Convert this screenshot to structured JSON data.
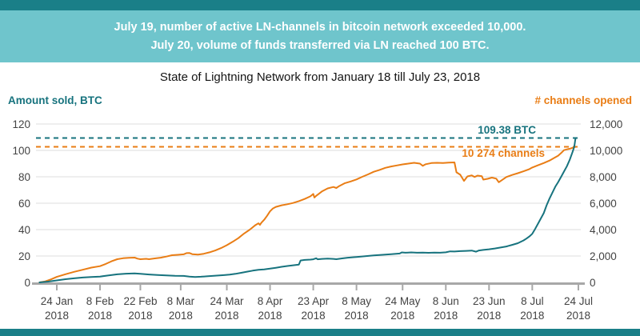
{
  "top_bar": {
    "color": "#1a7f88"
  },
  "banner": {
    "bg": "#6fc5cc",
    "text_color": "#ffffff",
    "line1": "July 19, number of active LN-channels in bitcoin network exceeded 10,000.",
    "line2": "July 20, volume of funds transferred via LN reached 100 BTC."
  },
  "title": "State of Lightning Network from January 18 till July 23, 2018",
  "bottom_bar": {
    "color": "#1a7f88"
  },
  "chart_data": {
    "type": "line",
    "title": "State of Lightning Network from January 18 till July 23, 2018",
    "grid": true,
    "legend_position": "axis-headers",
    "left_axis": {
      "label": "Amount sold, BTC",
      "color": "#17737e",
      "range": [
        0,
        120
      ],
      "ticks": [
        0,
        20,
        40,
        60,
        80,
        100,
        120
      ]
    },
    "right_axis": {
      "label": "# channels opened",
      "color": "#e97d15",
      "range": [
        0,
        12000
      ],
      "tick_labels": [
        "0",
        "2,000",
        "4,000",
        "6,000",
        "8,000",
        "10,000",
        "12,000"
      ],
      "ticks": [
        0,
        2000,
        4000,
        6000,
        8000,
        10000,
        12000
      ]
    },
    "x_axis": {
      "start_date": "2018-01-18",
      "end_date": "2018-07-23",
      "tick_year_line": "2018"
    },
    "x_ticks": [
      {
        "day": 6,
        "label": "24 Jan"
      },
      {
        "day": 21,
        "label": "8 Feb"
      },
      {
        "day": 35,
        "label": "22 Feb"
      },
      {
        "day": 49,
        "label": "8 Mar"
      },
      {
        "day": 65,
        "label": "24 Mar"
      },
      {
        "day": 80,
        "label": "8 Apr"
      },
      {
        "day": 95,
        "label": "23 Apr"
      },
      {
        "day": 110,
        "label": "8 May"
      },
      {
        "day": 126,
        "label": "24 May"
      },
      {
        "day": 141,
        "label": "8 Jun"
      },
      {
        "day": 156,
        "label": "23 Jun"
      },
      {
        "day": 171,
        "label": "8 Jul"
      },
      {
        "day": 187,
        "label": "24 Jul"
      }
    ],
    "annotations": [
      {
        "text": "109.38 BTC",
        "axis": "left",
        "value": 109.38,
        "color": "#17737e",
        "style": "dashed-line-with-label"
      },
      {
        "text": "10 274 channels",
        "axis": "right",
        "value": 10274,
        "color": "#e97d15",
        "style": "dashed-line-with-label"
      }
    ],
    "series": [
      {
        "name": "# channels opened",
        "axis": "right",
        "color": "#e97d15",
        "points": [
          [
            0,
            0
          ],
          [
            2,
            80
          ],
          [
            4,
            230
          ],
          [
            6,
            420
          ],
          [
            9,
            620
          ],
          [
            12,
            800
          ],
          [
            15,
            960
          ],
          [
            18,
            1120
          ],
          [
            21,
            1230
          ],
          [
            23,
            1400
          ],
          [
            25,
            1600
          ],
          [
            27,
            1760
          ],
          [
            29,
            1830
          ],
          [
            31,
            1860
          ],
          [
            33,
            1880
          ],
          [
            34,
            1800
          ],
          [
            35,
            1760
          ],
          [
            37,
            1790
          ],
          [
            38,
            1760
          ],
          [
            40,
            1820
          ],
          [
            42,
            1870
          ],
          [
            44,
            1960
          ],
          [
            46,
            2060
          ],
          [
            48,
            2090
          ],
          [
            50,
            2130
          ],
          [
            51,
            2220
          ],
          [
            52,
            2230
          ],
          [
            53,
            2140
          ],
          [
            55,
            2110
          ],
          [
            57,
            2170
          ],
          [
            59,
            2280
          ],
          [
            61,
            2420
          ],
          [
            63,
            2600
          ],
          [
            65,
            2820
          ],
          [
            67,
            3070
          ],
          [
            69,
            3350
          ],
          [
            71,
            3700
          ],
          [
            73,
            4000
          ],
          [
            75,
            4350
          ],
          [
            76,
            4480
          ],
          [
            76.5,
            4360
          ],
          [
            77,
            4520
          ],
          [
            78,
            4750
          ],
          [
            79,
            5050
          ],
          [
            80,
            5380
          ],
          [
            81,
            5600
          ],
          [
            82,
            5720
          ],
          [
            84,
            5840
          ],
          [
            86,
            5920
          ],
          [
            88,
            6020
          ],
          [
            90,
            6160
          ],
          [
            92,
            6320
          ],
          [
            94,
            6520
          ],
          [
            95,
            6700
          ],
          [
            95.4,
            6430
          ],
          [
            96,
            6560
          ],
          [
            98,
            6890
          ],
          [
            100,
            7120
          ],
          [
            102,
            7230
          ],
          [
            103,
            7150
          ],
          [
            104,
            7300
          ],
          [
            106,
            7520
          ],
          [
            108,
            7650
          ],
          [
            110,
            7800
          ],
          [
            112,
            8000
          ],
          [
            114,
            8180
          ],
          [
            116,
            8380
          ],
          [
            118,
            8520
          ],
          [
            120,
            8680
          ],
          [
            122,
            8780
          ],
          [
            124,
            8860
          ],
          [
            126,
            8940
          ],
          [
            128,
            9000
          ],
          [
            130,
            9060
          ],
          [
            132,
            9000
          ],
          [
            133,
            8830
          ],
          [
            134,
            8950
          ],
          [
            136,
            9040
          ],
          [
            138,
            9060
          ],
          [
            140,
            9050
          ],
          [
            142,
            9070
          ],
          [
            144,
            9090
          ],
          [
            144.7,
            8340
          ],
          [
            146,
            8160
          ],
          [
            147.3,
            7690
          ],
          [
            148.5,
            8030
          ],
          [
            150,
            8110
          ],
          [
            151,
            7990
          ],
          [
            152,
            8090
          ],
          [
            153.5,
            8050
          ],
          [
            154,
            7790
          ],
          [
            155.5,
            7850
          ],
          [
            157,
            7940
          ],
          [
            158.5,
            7860
          ],
          [
            159.4,
            7590
          ],
          [
            160.5,
            7750
          ],
          [
            162,
            7980
          ],
          [
            164,
            8140
          ],
          [
            166,
            8270
          ],
          [
            168,
            8420
          ],
          [
            170,
            8580
          ],
          [
            171,
            8700
          ],
          [
            173,
            8870
          ],
          [
            175,
            9040
          ],
          [
            177,
            9230
          ],
          [
            179,
            9480
          ],
          [
            180,
            9600
          ],
          [
            181,
            9800
          ],
          [
            182,
            10020
          ],
          [
            183,
            10080
          ],
          [
            184,
            10130
          ],
          [
            185,
            10200
          ],
          [
            186,
            10274
          ]
        ]
      },
      {
        "name": "Amount sold, BTC",
        "axis": "left",
        "color": "#17737e",
        "points": [
          [
            0,
            0
          ],
          [
            3,
            0.6
          ],
          [
            6,
            1.5
          ],
          [
            9,
            2.4
          ],
          [
            12,
            3.1
          ],
          [
            15,
            3.7
          ],
          [
            18,
            4.1
          ],
          [
            21,
            4.4
          ],
          [
            24,
            5.3
          ],
          [
            27,
            6.1
          ],
          [
            30,
            6.6
          ],
          [
            33,
            6.8
          ],
          [
            35,
            6.5
          ],
          [
            38,
            6.0
          ],
          [
            41,
            5.6
          ],
          [
            44,
            5.3
          ],
          [
            47,
            5.0
          ],
          [
            50,
            4.9
          ],
          [
            52,
            4.4
          ],
          [
            54,
            4.1
          ],
          [
            56,
            4.3
          ],
          [
            58,
            4.6
          ],
          [
            60,
            4.9
          ],
          [
            62,
            5.2
          ],
          [
            64,
            5.5
          ],
          [
            66,
            5.9
          ],
          [
            68,
            6.5
          ],
          [
            70,
            7.3
          ],
          [
            72,
            8.1
          ],
          [
            74,
            8.9
          ],
          [
            76,
            9.5
          ],
          [
            78,
            9.9
          ],
          [
            80,
            10.4
          ],
          [
            82,
            11.1
          ],
          [
            84,
            11.8
          ],
          [
            86,
            12.4
          ],
          [
            88,
            13.0
          ],
          [
            90,
            13.5
          ],
          [
            90.6,
            16.6
          ],
          [
            92,
            17.0
          ],
          [
            94,
            17.3
          ],
          [
            95,
            17.5
          ],
          [
            96,
            18.3
          ],
          [
            96.5,
            17.5
          ],
          [
            98,
            17.8
          ],
          [
            100,
            18.0
          ],
          [
            102,
            17.8
          ],
          [
            103,
            17.6
          ],
          [
            105,
            18.2
          ],
          [
            107,
            18.7
          ],
          [
            109,
            19.1
          ],
          [
            110,
            19.3
          ],
          [
            113,
            19.9
          ],
          [
            116,
            20.4
          ],
          [
            119,
            20.9
          ],
          [
            122,
            21.4
          ],
          [
            125,
            21.9
          ],
          [
            125.7,
            22.7
          ],
          [
            127,
            22.5
          ],
          [
            129,
            22.7
          ],
          [
            131,
            22.5
          ],
          [
            133,
            22.6
          ],
          [
            135,
            22.4
          ],
          [
            137,
            22.6
          ],
          [
            139,
            22.5
          ],
          [
            141,
            22.8
          ],
          [
            142.5,
            23.5
          ],
          [
            144,
            23.4
          ],
          [
            146,
            23.7
          ],
          [
            148,
            23.9
          ],
          [
            150,
            24.1
          ],
          [
            151.5,
            23.3
          ],
          [
            152.5,
            24.2
          ],
          [
            154,
            24.6
          ],
          [
            156,
            25.1
          ],
          [
            158,
            25.7
          ],
          [
            160,
            26.4
          ],
          [
            162,
            27.2
          ],
          [
            164,
            28.4
          ],
          [
            166,
            29.7
          ],
          [
            168,
            31.8
          ],
          [
            169,
            33.2
          ],
          [
            170,
            34.8
          ],
          [
            171,
            36.8
          ],
          [
            172,
            40.5
          ],
          [
            173,
            44.5
          ],
          [
            174,
            48.5
          ],
          [
            175,
            52.5
          ],
          [
            176,
            58.5
          ],
          [
            177,
            63.5
          ],
          [
            178,
            68
          ],
          [
            179,
            72.5
          ],
          [
            180,
            76
          ],
          [
            181,
            80
          ],
          [
            182,
            84
          ],
          [
            183,
            88
          ],
          [
            184,
            93
          ],
          [
            185,
            99
          ],
          [
            185.6,
            103
          ],
          [
            186,
            109.38
          ]
        ]
      }
    ],
    "style": {
      "grid_color": "#dedede",
      "axis_color": "#a8a8a8",
      "tick_text_color": "#434343",
      "line_width": 2
    }
  }
}
